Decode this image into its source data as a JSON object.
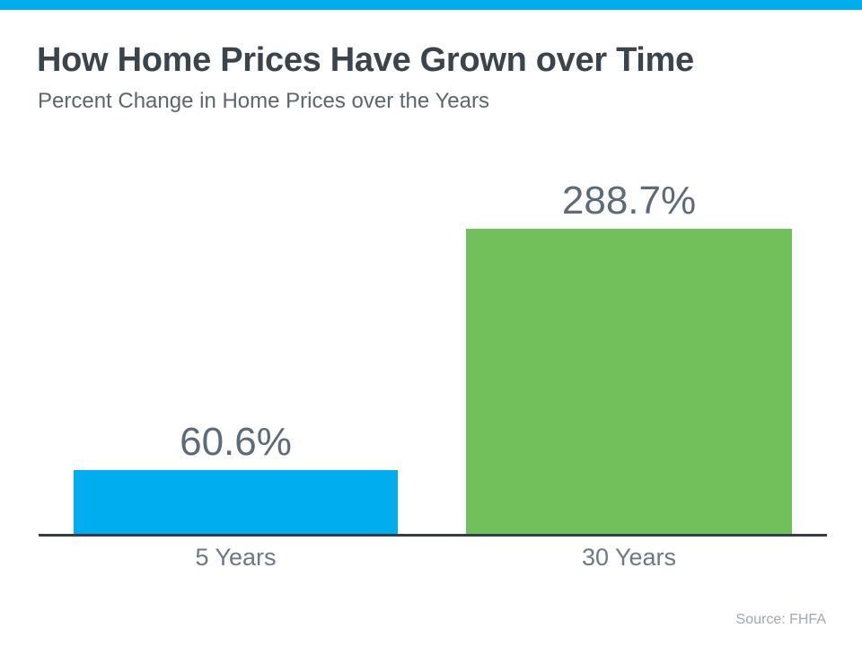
{
  "chart_data": {
    "type": "bar",
    "title": "How Home Prices Have Grown over Time",
    "subtitle": "Percent Change in Home Prices over the Years",
    "categories": [
      "5 Years",
      "30 Years"
    ],
    "values": [
      60.6,
      288.7
    ],
    "value_labels": [
      "60.6%",
      "288.7%"
    ],
    "series_colors": [
      "#00AEEF",
      "#70C05B"
    ],
    "source": "Source: FHFA",
    "xlabel": "",
    "ylabel": "",
    "ylim": [
      0,
      300
    ],
    "grid": false,
    "legend": false,
    "orientation": "vertical"
  },
  "theme": {
    "accent_blue": "#00AEEF",
    "bar_blue": "#00AEEF",
    "bar_green": "#70C05B",
    "title_color": "#3A444D",
    "subtitle_color": "#5B666F",
    "value_label_color": "#5D6B79",
    "category_label_color": "#6B7887",
    "axis_color": "#343C44",
    "source_color": "#9FA9B2",
    "background": "#FFFFFF"
  }
}
